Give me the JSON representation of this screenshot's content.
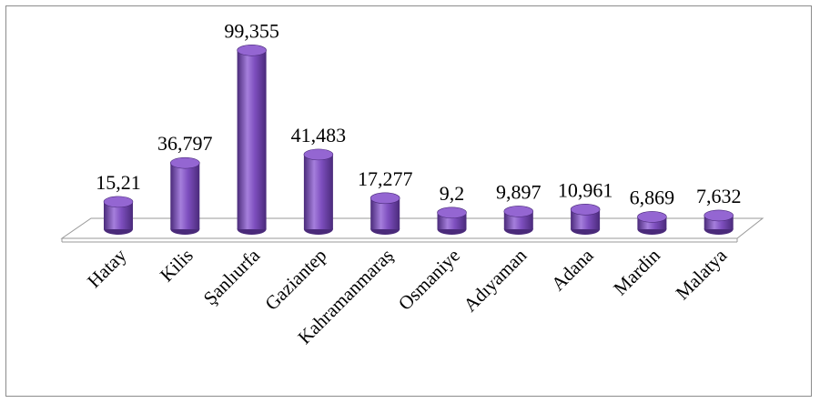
{
  "chart_data": {
    "type": "bar",
    "style": "3d-cylinder",
    "categories": [
      "Hatay",
      "Kilis",
      "Şanlıurfa",
      "Gaziantep",
      "Kahramanmaraş",
      "Osmaniye",
      "Adıyaman",
      "Adana",
      "Mardin",
      "Malatya"
    ],
    "values": [
      15.21,
      36.797,
      99.355,
      41.483,
      17.277,
      9.2,
      9.897,
      10.961,
      6.869,
      7.632
    ],
    "data_labels": [
      "15,21",
      "36,797",
      "99,355",
      "41,483",
      "17,277",
      "9,2",
      "9,897",
      "10,961",
      "6,869",
      "7,632"
    ],
    "title": "",
    "xlabel": "",
    "ylabel": "",
    "ylim": [
      0,
      100
    ],
    "grid": false,
    "legend": "none",
    "colors": {
      "bar_fill": "#7e4fbf",
      "bar_dark": "#4a2a7a",
      "bar_light": "#a57fdc",
      "bar_top": "#9466d2",
      "floor_fill": "#ffffff",
      "floor_stroke": "#9a9a9a"
    }
  }
}
